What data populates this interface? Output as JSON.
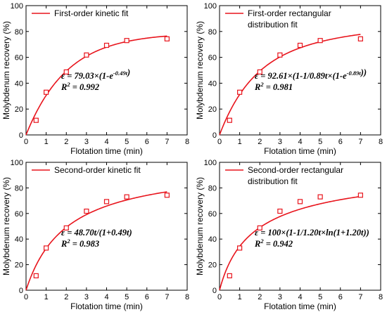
{
  "chart_data": [
    {
      "type": "scatter",
      "xlabel": "Flotation time (min)",
      "ylabel": "Molybdenum recovery (%)",
      "xlim": [
        0,
        8
      ],
      "ylim": [
        0,
        100
      ],
      "xticks": [
        "0",
        "1",
        "2",
        "3",
        "4",
        "5",
        "6",
        "7",
        "8"
      ],
      "yticks": [
        "0",
        "20",
        "40",
        "60",
        "80",
        "100"
      ],
      "legend": [
        "First-order kinetic fit"
      ],
      "equation": "ε = 79.03×(1-e-0.49t)",
      "r2": "R2 = 0.992",
      "fit": {
        "model": "first-order",
        "eps": 79.03,
        "k": 0.49
      },
      "x": [
        0.5,
        1,
        2,
        3,
        4,
        5,
        7
      ],
      "y": [
        11.3,
        33.0,
        48.7,
        61.8,
        69.3,
        73.0,
        74.3
      ],
      "line_color": "#e8141c",
      "marker_color": "#e8141c"
    },
    {
      "type": "scatter",
      "xlabel": "Flotation time (min)",
      "ylabel": "Molybdenum recovery (%)",
      "xlim": [
        0,
        8
      ],
      "ylim": [
        0,
        100
      ],
      "xticks": [
        "0",
        "1",
        "2",
        "3",
        "4",
        "5",
        "6",
        "7",
        "8"
      ],
      "yticks": [
        "0",
        "20",
        "40",
        "60",
        "80",
        "100"
      ],
      "legend": [
        "First-order rectangular",
        "distribution fit"
      ],
      "equation": "ε = 92.61×(1-1/0.89t×(1-e-0.89t))",
      "r2": "R2 = 0.981",
      "fit": {
        "model": "first-order-rect",
        "eps": 92.61,
        "k": 0.89
      },
      "x": [
        0.5,
        1,
        2,
        3,
        4,
        5,
        7
      ],
      "y": [
        11.3,
        33.0,
        48.7,
        61.8,
        69.3,
        73.0,
        74.3
      ],
      "line_color": "#e8141c",
      "marker_color": "#e8141c"
    },
    {
      "type": "scatter",
      "xlabel": "Flotation time (min)",
      "ylabel": "Molybdenum recovery (%)",
      "xlim": [
        0,
        8
      ],
      "ylim": [
        0,
        100
      ],
      "xticks": [
        "0",
        "1",
        "2",
        "3",
        "4",
        "5",
        "6",
        "7",
        "8"
      ],
      "yticks": [
        "0",
        "20",
        "40",
        "60",
        "80",
        "100"
      ],
      "legend": [
        "Second-order kinetic fit"
      ],
      "equation": "ε = 48.70t/(1+0.49t)",
      "r2": "R2 = 0.983",
      "fit": {
        "model": "second-order",
        "a": 48.7,
        "b": 0.49
      },
      "x": [
        0.5,
        1,
        2,
        3,
        4,
        5,
        7
      ],
      "y": [
        11.3,
        33.0,
        48.7,
        61.8,
        69.3,
        73.0,
        74.3
      ],
      "line_color": "#e8141c",
      "marker_color": "#e8141c"
    },
    {
      "type": "scatter",
      "xlabel": "Flotation time (min)",
      "ylabel": "Molybdenum recovery (%)",
      "xlim": [
        0,
        8
      ],
      "ylim": [
        0,
        100
      ],
      "xticks": [
        "0",
        "1",
        "2",
        "3",
        "4",
        "5",
        "6",
        "7",
        "8"
      ],
      "yticks": [
        "0",
        "20",
        "40",
        "60",
        "80",
        "100"
      ],
      "legend": [
        "Second-order rectangular",
        "distribution fit"
      ],
      "equation": "ε = 100×(1-1/1.20t×ln(1+1.20t))",
      "r2": "R2 = 0.942",
      "fit": {
        "model": "second-order-rect",
        "eps": 100,
        "k": 1.2
      },
      "x": [
        0.5,
        1,
        2,
        3,
        4,
        5,
        7
      ],
      "y": [
        11.3,
        33.0,
        48.7,
        61.8,
        69.3,
        73.0,
        74.3
      ],
      "line_color": "#e8141c",
      "marker_color": "#e8141c"
    }
  ]
}
